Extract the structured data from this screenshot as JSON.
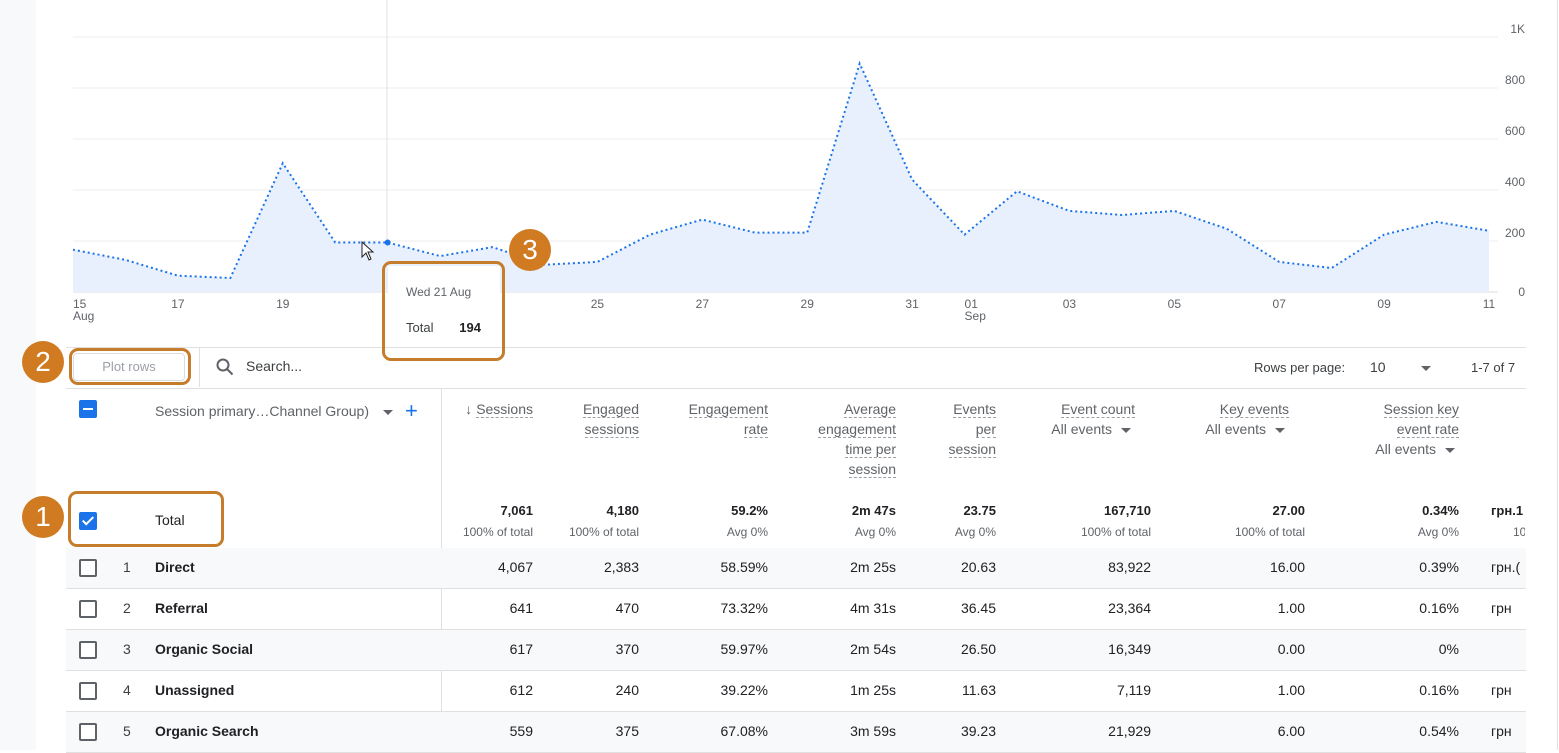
{
  "chart_data": {
    "type": "area",
    "x": [
      "15 Aug",
      "16 Aug",
      "17 Aug",
      "18 Aug",
      "19 Aug",
      "20 Aug",
      "21 Aug",
      "22 Aug",
      "23 Aug",
      "24 Aug",
      "25 Aug",
      "26 Aug",
      "27 Aug",
      "28 Aug",
      "29 Aug",
      "30 Aug",
      "31 Aug",
      "01 Sep",
      "02 Sep",
      "03 Sep",
      "04 Sep",
      "05 Sep",
      "06 Sep",
      "07 Sep",
      "08 Sep",
      "09 Sep",
      "10 Sep",
      "11 Sep"
    ],
    "values": [
      166,
      126,
      64,
      55,
      505,
      194,
      194,
      141,
      176,
      107,
      118,
      225,
      284,
      233,
      233,
      896,
      441,
      225,
      395,
      318,
      302,
      318,
      248,
      118,
      94,
      225,
      275,
      240
    ],
    "x_ticks": [
      {
        "index": 0,
        "label": "15",
        "sub": "Aug"
      },
      {
        "index": 2,
        "label": "17",
        "sub": ""
      },
      {
        "index": 4,
        "label": "19",
        "sub": ""
      },
      {
        "index": 10,
        "label": "25",
        "sub": ""
      },
      {
        "index": 12,
        "label": "27",
        "sub": ""
      },
      {
        "index": 14,
        "label": "29",
        "sub": ""
      },
      {
        "index": 16,
        "label": "31",
        "sub": ""
      },
      {
        "index": 17,
        "label": "01",
        "sub": "Sep"
      },
      {
        "index": 19,
        "label": "03",
        "sub": ""
      },
      {
        "index": 21,
        "label": "05",
        "sub": ""
      },
      {
        "index": 23,
        "label": "07",
        "sub": ""
      },
      {
        "index": 25,
        "label": "09",
        "sub": ""
      },
      {
        "index": 27,
        "label": "11",
        "sub": ""
      }
    ],
    "y_ticks": [
      {
        "value": 0,
        "label": "0"
      },
      {
        "value": 200,
        "label": "200"
      },
      {
        "value": 400,
        "label": "400"
      },
      {
        "value": 600,
        "label": "600"
      },
      {
        "value": 800,
        "label": "800"
      },
      {
        "value": 1000,
        "label": "1K"
      }
    ],
    "ylim": [
      0,
      1000
    ],
    "grid": true,
    "line_color": "#1a73e8",
    "fill_color": "#e8f0fe",
    "hover_index": 6
  },
  "tooltip": {
    "date": "Wed 21 Aug",
    "label": "Total",
    "value": "194"
  },
  "annotations": [
    "1",
    "2",
    "3"
  ],
  "accent_color": "#d07b22",
  "toolbar": {
    "plot_rows": "Plot rows",
    "search_placeholder": "Search...",
    "rows_per_page_label": "Rows per page:",
    "rows_per_page_value": "10",
    "pagination": "1-7 of 7"
  },
  "table": {
    "dimension_header": "Session primary…Channel Group)",
    "columns": [
      {
        "lines": [
          "Sessions"
        ],
        "sort": "↓"
      },
      {
        "lines": [
          "Engaged",
          "sessions"
        ]
      },
      {
        "lines": [
          "Engagement",
          "rate"
        ]
      },
      {
        "lines": [
          "Average",
          "engagement",
          "time per",
          "session"
        ]
      },
      {
        "lines": [
          "Events",
          "per",
          "session"
        ]
      },
      {
        "lines": [
          "Event count"
        ],
        "filter": "All events"
      },
      {
        "lines": [
          "Key events"
        ],
        "filter": "All events"
      },
      {
        "lines": [
          "Session key",
          "event rate"
        ],
        "filter": "All events"
      }
    ],
    "total": {
      "label": "Total",
      "values": [
        "7,061",
        "4,180",
        "59.2%",
        "2m 47s",
        "23.75",
        "167,710",
        "27.00",
        "0.34%",
        "грн.1"
      ],
      "subs": [
        "100% of total",
        "100% of total",
        "Avg 0%",
        "Avg 0%",
        "Avg 0%",
        "100% of total",
        "100% of total",
        "Avg 0%",
        "10"
      ]
    },
    "rows": [
      {
        "num": "1",
        "name": "Direct",
        "values": [
          "4,067",
          "2,383",
          "58.59%",
          "2m 25s",
          "20.63",
          "83,922",
          "16.00",
          "0.39%",
          "грн.("
        ]
      },
      {
        "num": "2",
        "name": "Referral",
        "values": [
          "641",
          "470",
          "73.32%",
          "4m 31s",
          "36.45",
          "23,364",
          "1.00",
          "0.16%",
          "грн"
        ]
      },
      {
        "num": "3",
        "name": "Organic Social",
        "values": [
          "617",
          "370",
          "59.97%",
          "2m 54s",
          "26.50",
          "16,349",
          "0.00",
          "0%",
          ""
        ]
      },
      {
        "num": "4",
        "name": "Unassigned",
        "values": [
          "612",
          "240",
          "39.22%",
          "1m 25s",
          "11.63",
          "7,119",
          "1.00",
          "0.16%",
          "грн"
        ]
      },
      {
        "num": "5",
        "name": "Organic Search",
        "values": [
          "559",
          "375",
          "67.08%",
          "3m 59s",
          "39.23",
          "21,929",
          "6.00",
          "0.54%",
          "грн"
        ]
      }
    ]
  }
}
